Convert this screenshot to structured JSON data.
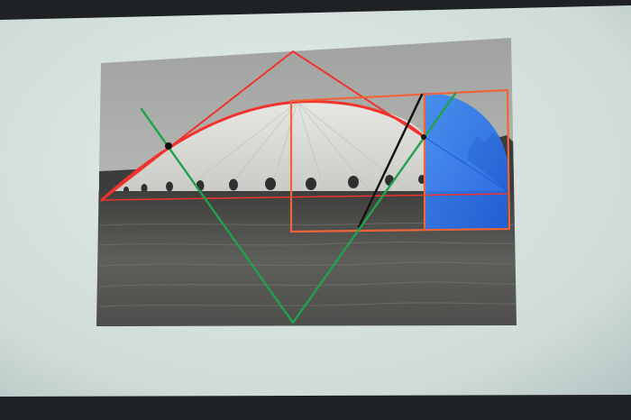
{
  "scene": {
    "subject": "projected-slide",
    "colors": {
      "projection_light": "#e4ece7",
      "projection_mid": "#cfdbd8",
      "projection_edge": "#aebfbe",
      "room_dark": "#1e2224",
      "sky": "#a9aba9",
      "dome": "#d8d8d4",
      "dome_shade": "#c6c6c2",
      "ground_dark": "#4a4a48",
      "ground_light": "#6c6c69",
      "treeline": "#3a3d3c",
      "port_hole": "#2f3030",
      "line_red": "#f2322c",
      "line_orange": "#f0643a",
      "line_green": "#1fa34a",
      "line_black": "#141414",
      "fill_blue": "#1f5fe0",
      "fill_blue_light": "#3f8cf2",
      "point_black": "#111111"
    },
    "icons": [
      "dome-photo",
      "circular-arc",
      "golden-rectangle",
      "triangle"
    ]
  }
}
